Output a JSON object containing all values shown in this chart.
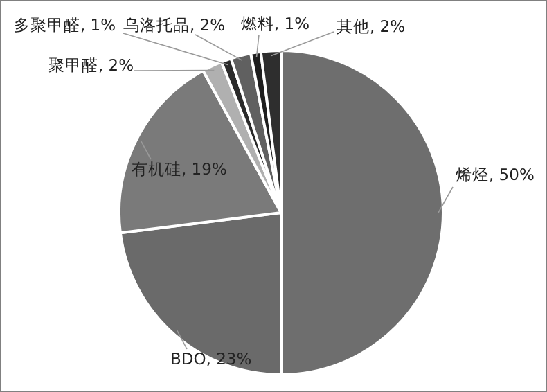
{
  "chart_data": {
    "type": "pie",
    "categories": [
      "烯烃",
      "BDO",
      "有机硅",
      "聚甲醛",
      "多聚甲醛",
      "乌洛托品",
      "燃料",
      "其他"
    ],
    "values": [
      50,
      23,
      19,
      2,
      1,
      2,
      1,
      2
    ],
    "value_labels": [
      "50%",
      "23%",
      "19%",
      "2%",
      "1%",
      "2%",
      "1%",
      "2%"
    ],
    "colors": [
      "#6e6e6e",
      "#6a6a6a",
      "#7a7a7a",
      "#b0b0b0",
      "#2a2a2a",
      "#606060",
      "#1e1e1e",
      "#2e2e2e"
    ],
    "legend": false
  }
}
